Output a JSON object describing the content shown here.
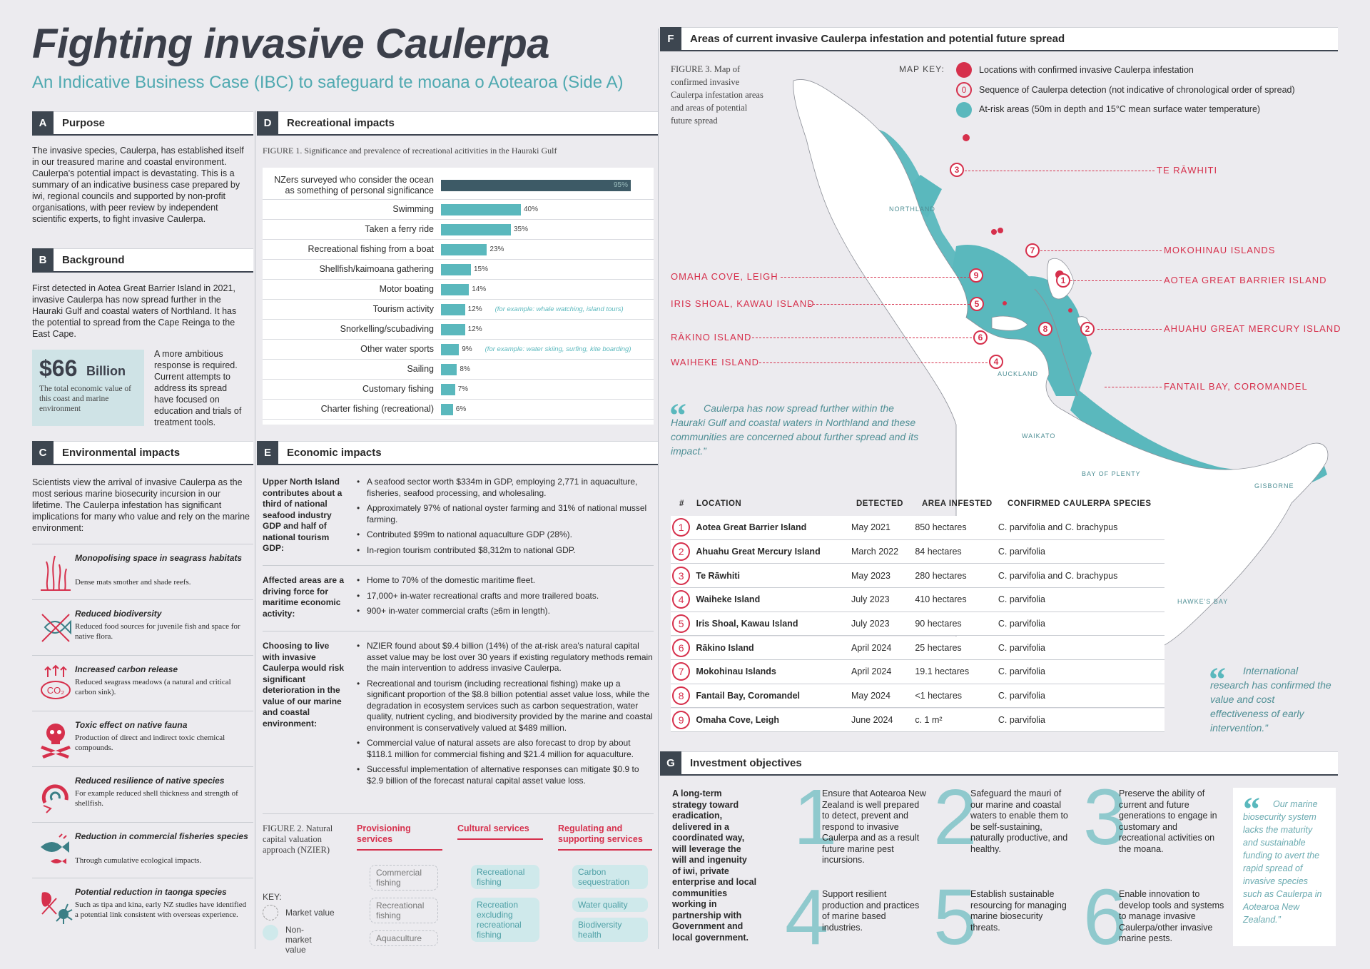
{
  "header": {
    "title": "Fighting invasive Caulerpa",
    "subtitle": "An Indicative Business Case (IBC) to safeguard te moana o Aotearoa (Side A)"
  },
  "purpose": {
    "letter": "A",
    "title": "Purpose",
    "text": "The invasive species, Caulerpa, has established itself in our treasured marine and coastal environment. Caulerpa's potential impact is devastating. This is a summary of an indicative business case prepared by iwi, regional councils and supported by non-profit organisations, with peer review by independent scientific experts, to fight invasive Caulerpa."
  },
  "background": {
    "letter": "B",
    "title": "Background",
    "text": "First detected in Aotea Great Barrier Island in 2021, invasive Caulerpa has now spread further in the Hauraki Gulf and coastal waters of Northland. It has the potential to spread from the Cape Reinga to the East Cape.",
    "stat_value": "$66",
    "stat_unit": "Billion",
    "stat_caption": "The total economic value of this coast and marine environment",
    "side_text": "A more ambitious response is required. Current attempts to address its spread have focused on education and trials of treatment tools."
  },
  "environmental": {
    "letter": "C",
    "title": "Environmental impacts",
    "intro": "Scientists view the arrival of invasive Caulerpa as the most serious marine biosecurity incursion in our lifetime. The Caulerpa infestation has significant implications for many who value and rely on the marine environment:",
    "items": [
      {
        "title": "Monopolising space in seagrass habitats",
        "desc": "Dense mats smother and shade reefs.",
        "icon": "seagrass-icon"
      },
      {
        "title": "Reduced biodiversity",
        "desc": "Reduced food sources for juvenile fish and space for native flora.",
        "icon": "crossed-fish-icon"
      },
      {
        "title": "Increased carbon release",
        "desc": "Reduced seagrass meadows (a natural and critical carbon sink).",
        "icon": "co2-icon"
      },
      {
        "title": "Toxic effect on native fauna",
        "desc": "Production of direct and indirect toxic chemical compounds.",
        "icon": "skull-icon"
      },
      {
        "title": "Reduced resilience of native species",
        "desc": "For example reduced shell thickness and strength of shellfish.",
        "icon": "broken-shell-icon"
      },
      {
        "title": "Reduction in commercial fisheries species",
        "desc": "Through cumulative ecological impacts.",
        "icon": "fish-icon"
      },
      {
        "title": "Potential reduction in taonga species",
        "desc": "Such as tipa and kina, early NZ studies have identified a potential link consistent with overseas experience.",
        "icon": "kina-icon"
      }
    ]
  },
  "recreational": {
    "letter": "D",
    "title": "Recreational impacts",
    "figure_caption": "FIGURE 1. Significance and prevalence of recreational acitivities in the Hauraki Gulf"
  },
  "chart_data": {
    "type": "bar",
    "title": "FIGURE 1. Significance and prevalence of recreational acitivities in the Hauraki Gulf",
    "categories": [
      "NZers surveyed who consider the ocean as something of personal significance",
      "Swimming",
      "Taken a ferry ride",
      "Recreational fishing from a boat",
      "Shellfish/kaimoana gathering",
      "Motor boating",
      "Tourism activity",
      "Snorkelling/scubadiving",
      "Other water sports",
      "Sailing",
      "Customary fishing",
      "Charter fishing (recreational)"
    ],
    "values": [
      95,
      40,
      35,
      23,
      15,
      14,
      12,
      12,
      9,
      8,
      7,
      6
    ],
    "labels": [
      "95%",
      "40%",
      "35%",
      "23%",
      "15%",
      "14%",
      "12%",
      "12%",
      "9%",
      "8%",
      "7%",
      "6%"
    ],
    "notes": [
      "",
      "",
      "",
      "",
      "",
      "",
      "(for example: whale watching, island tours)",
      "",
      "(for example: water skiing, surfing, kite boarding)",
      "",
      "",
      ""
    ],
    "xlim": [
      0,
      100
    ],
    "colors": {
      "first": "#3d5a66",
      "rest": "#5ab8bd"
    }
  },
  "economic": {
    "letter": "E",
    "title": "Economic impacts",
    "groups": [
      {
        "label": "Upper North Island contributes about a third of national seafood industry GDP and half of national tourism GDP:",
        "points": [
          "A seafood sector worth $334m in GDP, employing 2,771 in aquaculture, fisheries, seafood processing, and wholesaling.",
          "Approximately 97% of national oyster farming and 31% of national mussel farming.",
          "Contributed $99m to national aquaculture GDP (28%).",
          "In-region tourism contributed $8,312m to national GDP."
        ]
      },
      {
        "label": "Affected areas are a driving force for maritime economic activity:",
        "points": [
          "Home to 70% of the domestic maritime fleet.",
          "17,000+ in-water recreational crafts and more trailered boats.",
          "900+ in-water commercial crafts (≥6m in length)."
        ]
      },
      {
        "label": "Choosing to live with invasive Caulerpa would risk significant deterioration in the value of our marine and coastal environment:",
        "points": [
          "NZIER found about $9.4 billion (14%) of the at-risk area's natural capital asset value may be lost over 30 years if existing regulatory methods remain the main intervention to address invasive Caulerpa.",
          "Recreational and tourism (including recreational fishing) make up a significant proportion of the $8.8 billion potential asset value loss, while the degradation in ecosystem services such as carbon sequestration, water quality, nutrient cycling, and biodiversity provided by the marine and coastal environment is conservatively valued at $489 million.",
          "Commercial value of natural assets are also forecast to drop by about $118.1 million for commercial fishing and $21.4 million for aquaculture.",
          "Successful implementation of alternative responses can mitigate $0.9 to $2.9 billion of the forecast natural capital asset value loss."
        ]
      }
    ],
    "figure2_caption": "FIGURE 2. Natural capital valuation approach (NZIER)",
    "key_label": "KEY:",
    "key_market": "Market value",
    "key_nonmarket": "Non-market value",
    "columns": [
      {
        "title": "Provisioning services",
        "items": [
          "Commercial fishing",
          "Recreational fishing",
          "Aquaculture"
        ],
        "market": [
          false,
          false,
          false
        ]
      },
      {
        "title": "Cultural services",
        "items": [
          "Recreational fishing",
          "Recreation excluding recreational fishing"
        ],
        "market": [
          true,
          true
        ]
      },
      {
        "title": "Regulating and supporting services",
        "items": [
          "Carbon sequestration",
          "Water quality",
          "Biodiversity health"
        ],
        "market": [
          true,
          true,
          true
        ]
      }
    ]
  },
  "map_section": {
    "letter": "F",
    "title": "Areas of current invasive Caulerpa infestation and potential future spread",
    "figure_caption": "FIGURE 3. Map of confirmed invasive Caulerpa infestation areas and areas of potential future spread",
    "key_title": "MAP KEY:",
    "key_items": [
      "Locations with confirmed invasive Caulerpa infestation",
      "Sequence of Caulerpa detection (not indicative of chronological order of spread)",
      "At-risk areas (50m in depth and 15°C mean surface water temperature)"
    ],
    "key_seq_symbol": "0",
    "region_labels": [
      "NORTHLAND",
      "AUCKLAND",
      "WAIKATO",
      "BAY OF PLENTY",
      "GISBORNE",
      "HAWKE'S BAY"
    ],
    "place_labels": [
      "TE RĀWHITI",
      "MOKOHINAU ISLANDS",
      "AOTEA GREAT BARRIER ISLAND",
      "AHUAHU GREAT MERCURY ISLAND",
      "FANTAIL BAY, COROMANDEL",
      "OMAHA COVE, LEIGH",
      "IRIS SHOAL, KAWAU ISLAND",
      "RĀKINO ISLAND",
      "WAIHEKE ISLAND"
    ],
    "pins": [
      "3",
      "7",
      "9",
      "1",
      "5",
      "8",
      "2",
      "6",
      "4"
    ],
    "quote1": "Caulerpa has now spread further within the Hauraki Gulf and coastal waters in Northland and these communities are concerned about further spread and its impact.”",
    "quote2": "International research has confirmed the value and cost effectiveness of early intervention.”",
    "quote_mark": "“"
  },
  "table": {
    "headers": [
      "#",
      "LOCATION",
      "DETECTED",
      "AREA INFESTED",
      "CONFIRMED CAULERPA SPECIES"
    ],
    "rows": [
      [
        "1",
        "Aotea Great Barrier Island",
        "May 2021",
        "850 hectares",
        "C. parvifolia and C. brachypus"
      ],
      [
        "2",
        "Ahuahu Great Mercury Island",
        "March 2022",
        "84 hectares",
        "C. parvifolia"
      ],
      [
        "3",
        "Te Rāwhiti",
        "May 2023",
        "280 hectares",
        "C. parvifolia and C. brachypus"
      ],
      [
        "4",
        "Waiheke Island",
        "July 2023",
        "410 hectares",
        "C. parvifolia"
      ],
      [
        "5",
        "Iris Shoal, Kawau Island",
        "July 2023",
        "90 hectares",
        "C. parvifolia"
      ],
      [
        "6",
        "Rākino Island",
        "April 2024",
        "25 hectares",
        "C. parvifolia"
      ],
      [
        "7",
        "Mokohinau Islands",
        "April 2024",
        "19.1 hectares",
        "C. parvifolia"
      ],
      [
        "8",
        "Fantail Bay, Coromandel",
        "May 2024",
        "<1 hectares",
        "C. parvifolia"
      ],
      [
        "9",
        "Omaha Cove, Leigh",
        "June 2024",
        "c. 1 m²",
        "C. parvifolia"
      ]
    ]
  },
  "investment": {
    "letter": "G",
    "title": "Investment objectives",
    "intro": "A long-term strategy toward eradication, delivered in a coordinated way, will leverage the will and ingenuity of iwi, private enterprise and local communities working in partnership with Government and local government.",
    "objectives": [
      {
        "num": "1",
        "text": "Ensure that Aotearoa New Zealand is well prepared to detect, prevent and respond to invasive Caulerpa and as a result future marine pest incursions."
      },
      {
        "num": "2",
        "text": "Safeguard the mauri of our marine and coastal waters to enable them to be self-sustaining, naturally productive, and healthy."
      },
      {
        "num": "3",
        "text": "Preserve the ability of current and future generations to engage in customary and recreational activities on the moana."
      },
      {
        "num": "4",
        "text": "Support resilient production and practices of marine based industries."
      },
      {
        "num": "5",
        "text": "Establish sustainable resourcing for managing marine biosecurity threats."
      },
      {
        "num": "6",
        "text": "Enable innovation to develop tools and systems to manage invasive Caulerpa/other invasive marine pests."
      }
    ],
    "quote": "Our marine biosecurity system lacks the maturity and sustainable funding to avert the rapid spread of invasive species such as Caulerpa in Aotearoa New Zealand.”"
  }
}
